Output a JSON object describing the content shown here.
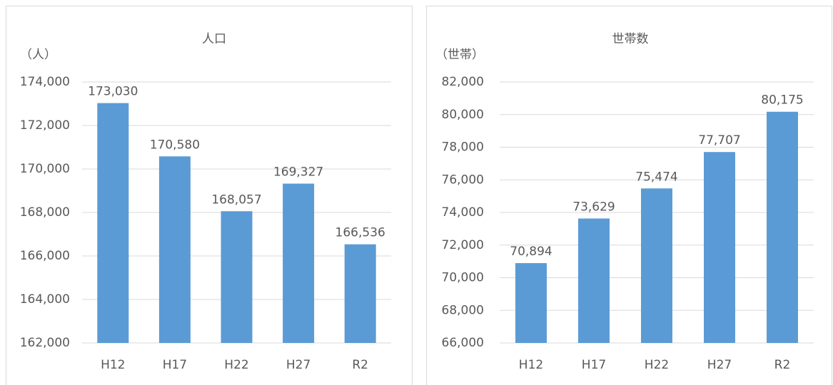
{
  "chart_data": [
    {
      "type": "bar",
      "title": "人口",
      "ylabel": "（人）",
      "categories": [
        "H12",
        "H17",
        "H22",
        "H27",
        "R2"
      ],
      "values": [
        173030,
        170580,
        168057,
        169327,
        166536
      ],
      "value_labels": [
        "173,030",
        "170,580",
        "168,057",
        "169,327",
        "166,536"
      ],
      "color": "#5b9bd5",
      "ylim": [
        162000,
        174000
      ],
      "yticks": [
        {
          "value": 162000,
          "label": "162,000"
        },
        {
          "value": 164000,
          "label": "164,000"
        },
        {
          "value": 166000,
          "label": "166,000"
        },
        {
          "value": 168000,
          "label": "168,000"
        },
        {
          "value": 170000,
          "label": "170,000"
        },
        {
          "value": 172000,
          "label": "172,000"
        },
        {
          "value": 174000,
          "label": "174,000"
        }
      ],
      "grid": true
    },
    {
      "type": "bar",
      "title": "世帯数",
      "ylabel": "（世帯）",
      "categories": [
        "H12",
        "H17",
        "H22",
        "H27",
        "R2"
      ],
      "values": [
        70894,
        73629,
        75474,
        77707,
        80175
      ],
      "value_labels": [
        "70,894",
        "73,629",
        "75,474",
        "77,707",
        "80,175"
      ],
      "color": "#5b9bd5",
      "ylim": [
        66000,
        82000
      ],
      "yticks": [
        {
          "value": 66000,
          "label": "66,000"
        },
        {
          "value": 68000,
          "label": "68,000"
        },
        {
          "value": 70000,
          "label": "70,000"
        },
        {
          "value": 72000,
          "label": "72,000"
        },
        {
          "value": 74000,
          "label": "74,000"
        },
        {
          "value": 76000,
          "label": "76,000"
        },
        {
          "value": 78000,
          "label": "78,000"
        },
        {
          "value": 80000,
          "label": "80,000"
        },
        {
          "value": 82000,
          "label": "82,000"
        }
      ],
      "grid": true
    }
  ]
}
